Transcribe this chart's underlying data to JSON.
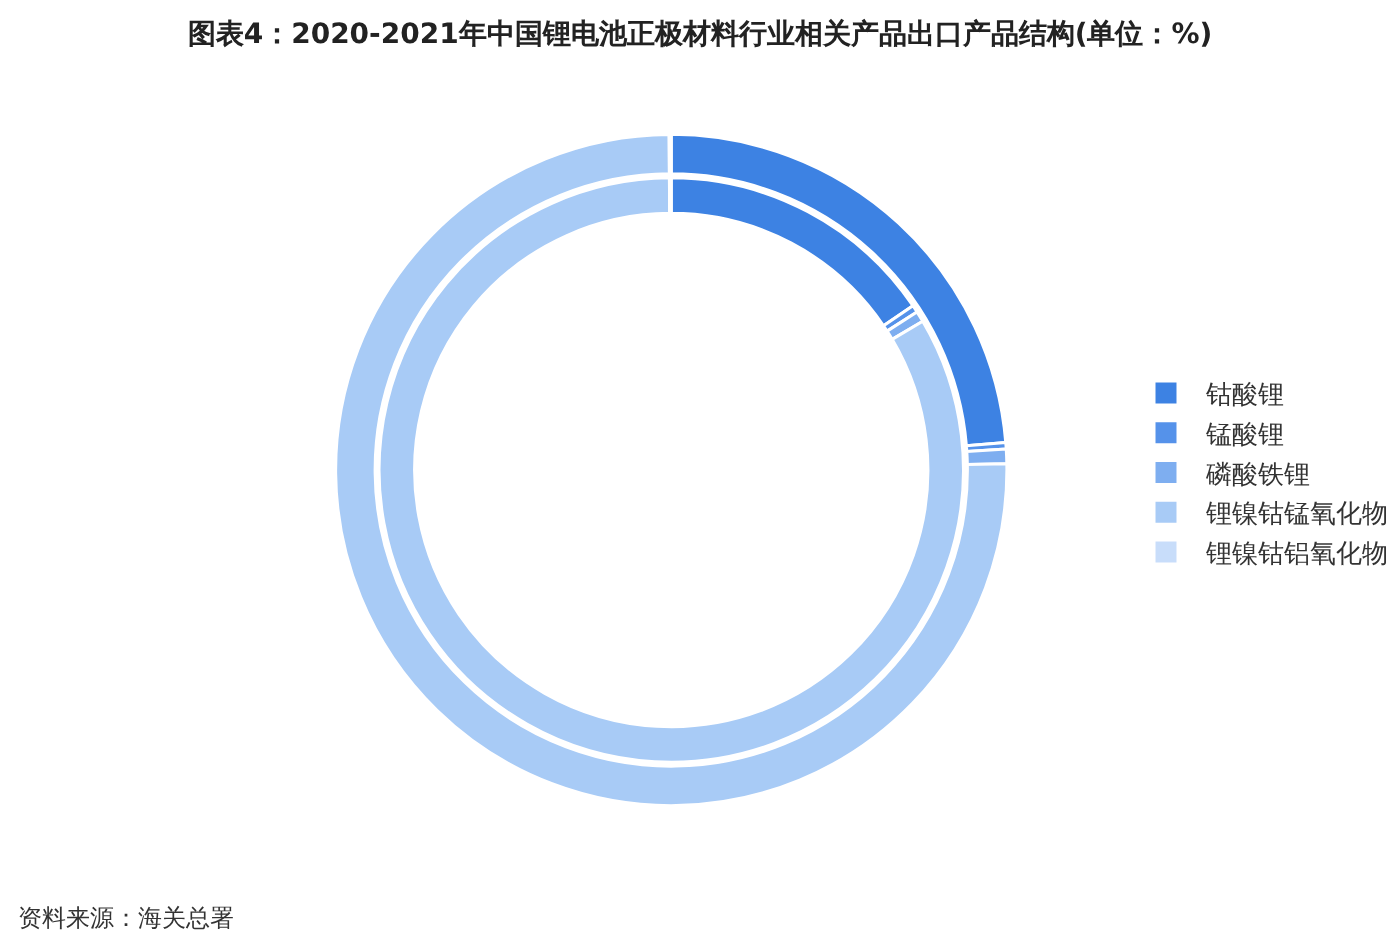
{
  "chart_data": {
    "type": "donut",
    "title": "图表4：2020-2021年中国锂电池正极材料行业相关产品出口产品结构(单位：%)",
    "categories": [
      "钴酸锂",
      "锰酸锂",
      "磷酸铁锂",
      "锂镍钴锰氧化物",
      "锂镍钴铝氧化物"
    ],
    "colors": [
      "#3d82e3",
      "#5592ea",
      "#7eaef0",
      "#a8cbf6",
      "#c8ddfa"
    ],
    "series": [
      {
        "values": [
          23.7,
          0.3,
          0.7,
          75.2,
          0.1
        ]
      },
      {
        "values": [
          15.5,
          0.4,
          0.6,
          83.4,
          0.1
        ]
      }
    ],
    "legend": "right",
    "annotations": [
      "资料来源：海关总署"
    ]
  }
}
